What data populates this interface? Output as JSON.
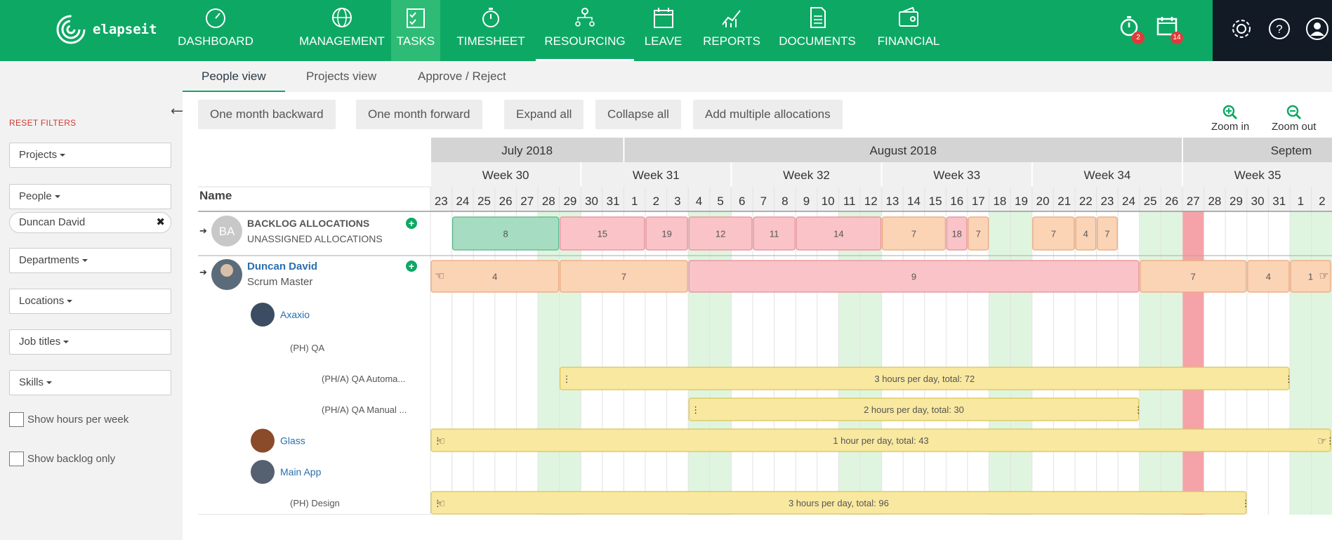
{
  "app": {
    "logo_text": "elapseit",
    "nav": [
      {
        "label": "DASHBOARD",
        "icon": "dashboard-icon"
      },
      {
        "label": "MANAGEMENT",
        "icon": "globe-icon"
      },
      {
        "label": "TASKS",
        "icon": "tasks-icon"
      },
      {
        "label": "TIMESHEET",
        "icon": "stopwatch-icon"
      },
      {
        "label": "RESOURCING",
        "icon": "people-icon"
      },
      {
        "label": "LEAVE",
        "icon": "calendar-icon"
      },
      {
        "label": "REPORTS",
        "icon": "chart-icon"
      },
      {
        "label": "DOCUMENTS",
        "icon": "document-icon"
      },
      {
        "label": "FINANCIAL",
        "icon": "wallet-icon"
      }
    ],
    "notifications": {
      "timer_count": "2",
      "calendar_count": "14"
    },
    "colors": {
      "brand": "#0ea865",
      "dark": "#121a26"
    }
  },
  "subtabs": [
    "People view",
    "Projects view",
    "Approve / Reject"
  ],
  "sidebar": {
    "reset": "RESET FILTERS",
    "filters": [
      "Projects",
      "People",
      "Departments",
      "Locations",
      "Job titles",
      "Skills"
    ],
    "selected_person": "Duncan David",
    "checkboxes": [
      "Show hours per week",
      "Show backlog only"
    ]
  },
  "toolbar": {
    "buttons": [
      "One month backward",
      "One month forward",
      "Expand all",
      "Collapse all",
      "Add multiple allocations"
    ],
    "zoom_in": "Zoom in",
    "zoom_out": "Zoom out"
  },
  "grid": {
    "name_header": "Name",
    "months": [
      {
        "label": "July 2018",
        "from": 0,
        "to": 9
      },
      {
        "label": "August 2018",
        "from": 9,
        "to": 35
      },
      {
        "label": "Septem",
        "from": 35,
        "to": 42
      }
    ],
    "weeks": [
      {
        "label": "Week 30",
        "from": 0,
        "to": 7
      },
      {
        "label": "Week 31",
        "from": 7,
        "to": 14
      },
      {
        "label": "Week 32",
        "from": 14,
        "to": 21
      },
      {
        "label": "Week 33",
        "from": 21,
        "to": 28
      },
      {
        "label": "Week 34",
        "from": 28,
        "to": 35
      },
      {
        "label": "Week 35",
        "from": 35,
        "to": 42
      }
    ],
    "days": [
      "23",
      "24",
      "25",
      "26",
      "27",
      "28",
      "29",
      "30",
      "31",
      "1",
      "2",
      "3",
      "4",
      "5",
      "6",
      "7",
      "8",
      "9",
      "10",
      "11",
      "12",
      "13",
      "14",
      "15",
      "16",
      "17",
      "18",
      "19",
      "20",
      "21",
      "22",
      "23",
      "24",
      "25",
      "26",
      "27",
      "28",
      "29",
      "30",
      "31",
      "1",
      "2"
    ],
    "weekend_days": [
      5,
      6,
      12,
      13,
      19,
      20,
      26,
      27,
      33,
      34,
      40,
      41
    ],
    "holiday_days": [
      35
    ],
    "rows": [
      {
        "kind": "backlog",
        "initials": "BA",
        "title": "BACKLOG ALLOCATIONS",
        "subtitle": "UNASSIGNED ALLOCATIONS"
      },
      {
        "kind": "person",
        "name": "Duncan David",
        "role": "Scrum Master"
      },
      {
        "kind": "project",
        "name": "Axaxio"
      },
      {
        "kind": "phase",
        "name": "(PH) QA"
      },
      {
        "kind": "subphase",
        "name": "(PH/A) QA Automa..."
      },
      {
        "kind": "subphase",
        "name": "(PH/A) QA Manual ..."
      },
      {
        "kind": "project",
        "name": "Glass"
      },
      {
        "kind": "project",
        "name": "Main App"
      },
      {
        "kind": "phase",
        "name": "(PH) Design"
      }
    ],
    "backlog_bars": [
      {
        "from": 1,
        "to": 6,
        "label": "8",
        "color": "green"
      },
      {
        "from": 6,
        "to": 10,
        "label": "15",
        "color": "red"
      },
      {
        "from": 10,
        "to": 12,
        "label": "19",
        "color": "red"
      },
      {
        "from": 12,
        "to": 15,
        "label": "12",
        "color": "red"
      },
      {
        "from": 15,
        "to": 17,
        "label": "11",
        "color": "red"
      },
      {
        "from": 17,
        "to": 21,
        "label": "14",
        "color": "red"
      },
      {
        "from": 21,
        "to": 24,
        "label": "7",
        "color": "orange"
      },
      {
        "from": 24,
        "to": 25,
        "label": "18",
        "color": "red"
      },
      {
        "from": 25,
        "to": 26,
        "label": "7",
        "color": "orange"
      },
      {
        "from": 28,
        "to": 30,
        "label": "7",
        "color": "orange"
      },
      {
        "from": 30,
        "to": 31,
        "label": "4",
        "color": "orange"
      },
      {
        "from": 31,
        "to": 32,
        "label": "7",
        "color": "orange"
      }
    ],
    "person_bars": [
      {
        "from": 0,
        "to": 6,
        "label": "4",
        "color": "orange"
      },
      {
        "from": 6,
        "to": 12,
        "label": "7",
        "color": "orange"
      },
      {
        "from": 12,
        "to": 33,
        "label": "9",
        "color": "red"
      },
      {
        "from": 33,
        "to": 38,
        "label": "7",
        "color": "orange"
      },
      {
        "from": 38,
        "to": 40,
        "label": "4",
        "color": "orange"
      },
      {
        "from": 40,
        "to": 42,
        "label": "1",
        "color": "orange"
      }
    ],
    "allocation_bars": [
      {
        "row": 4,
        "from": 6,
        "to": 40,
        "label": "3 hours per day, total: 72"
      },
      {
        "row": 5,
        "from": 12,
        "to": 33,
        "label": "2 hours per day, total: 30"
      },
      {
        "row": 6,
        "from": 0,
        "to": 42,
        "label": "1 hour per day, total: 43"
      },
      {
        "row": 8,
        "from": 0,
        "to": 38,
        "label": "3 hours per day, total: 96"
      }
    ]
  }
}
